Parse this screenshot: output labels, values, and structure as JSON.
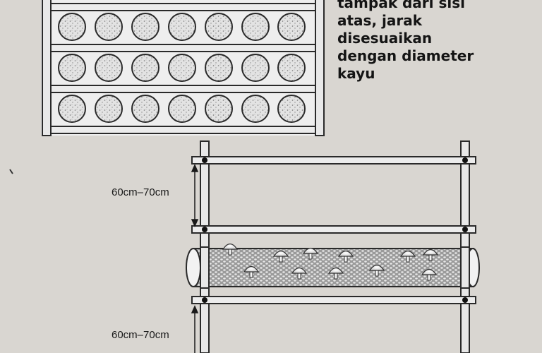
{
  "caption_lines": [
    "tampak dari sisi",
    "atas, jarak",
    "disesuaikan",
    "dengan diameter",
    "kayu"
  ],
  "dimension_labels": {
    "top": "60cm–70cm",
    "bottom": "60cm–70cm"
  },
  "colors": {
    "page": "#d9d6d1",
    "frame": "#e6e6e6",
    "stroke": "#2a2a2a",
    "log_fill": "#bfbfbf"
  }
}
